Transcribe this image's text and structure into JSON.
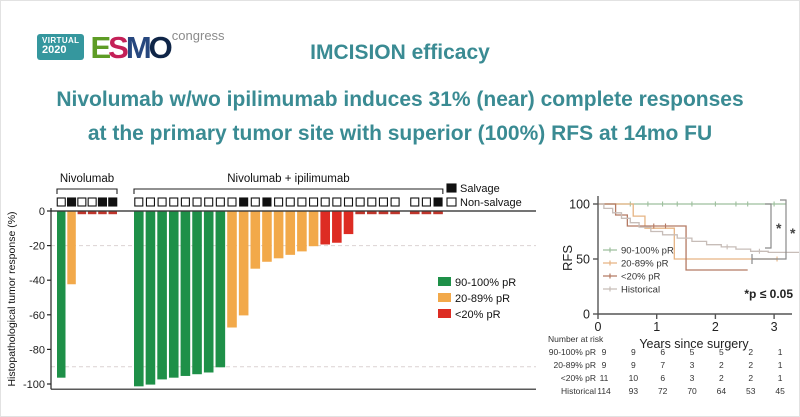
{
  "logo": {
    "virtual_label": "VIRTUAL",
    "year": "2020",
    "virtual_bg": "#35979E",
    "letters": [
      {
        "ch": "E",
        "color": "#5E9C25"
      },
      {
        "ch": "S",
        "color": "#C42057"
      },
      {
        "ch": "M",
        "color": "#27477E"
      },
      {
        "ch": "O",
        "color": "#0F2547"
      }
    ],
    "congress_label": "congress"
  },
  "header": {
    "title": "IMCISION efficacy",
    "subtitle_line1": "Nivolumab w/wo ipilimumab induces 31% (near) complete responses",
    "subtitle_line2": "at the primary tumor site with superior (100%) RFS at 14mo FU",
    "accent_color": "#3A8B93"
  },
  "chart_data": [
    {
      "type": "bar",
      "name": "histopathological-response-waterfall",
      "ylabel": "Histopathological tumor response (%)",
      "yticks": [
        0,
        -20,
        -40,
        -60,
        -80,
        -100
      ],
      "ylim": [
        -103,
        0
      ],
      "threshold_lines": [
        -20,
        -90
      ],
      "bar_colors": {
        "green": "#1E9048",
        "orange": "#F2A94A",
        "red": "#DD2C23",
        "dash": "#C0362C"
      },
      "groups": [
        {
          "label": "Nivolumab",
          "bars": [
            {
              "value": -96,
              "color": "green",
              "salvage": false
            },
            {
              "value": -42,
              "color": "orange",
              "salvage": true
            },
            {
              "value": -1.5,
              "color": "dash",
              "salvage": false
            },
            {
              "value": -1.5,
              "color": "dash",
              "salvage": false
            },
            {
              "value": -1.5,
              "color": "dash",
              "salvage": true
            },
            {
              "value": -1.5,
              "color": "dash",
              "salvage": true
            }
          ]
        },
        {
          "label": "Nivolumab + ipilimumab",
          "bars": [
            {
              "value": -101,
              "color": "green",
              "salvage": false
            },
            {
              "value": -100,
              "color": "green",
              "salvage": false
            },
            {
              "value": -97,
              "color": "green",
              "salvage": false
            },
            {
              "value": -96,
              "color": "green",
              "salvage": false
            },
            {
              "value": -95,
              "color": "green",
              "salvage": false
            },
            {
              "value": -94,
              "color": "green",
              "salvage": false
            },
            {
              "value": -93,
              "color": "green",
              "salvage": false
            },
            {
              "value": -90,
              "color": "green",
              "salvage": false
            },
            {
              "value": -67,
              "color": "orange",
              "salvage": false
            },
            {
              "value": -60,
              "color": "orange",
              "salvage": true
            },
            {
              "value": -33,
              "color": "orange",
              "salvage": false
            },
            {
              "value": -29,
              "color": "orange",
              "salvage": true
            },
            {
              "value": -27,
              "color": "orange",
              "salvage": false
            },
            {
              "value": -25,
              "color": "orange",
              "salvage": false
            },
            {
              "value": -23,
              "color": "orange",
              "salvage": false
            },
            {
              "value": -20,
              "color": "orange",
              "salvage": false
            },
            {
              "value": -19,
              "color": "red",
              "salvage": false
            },
            {
              "value": -18,
              "color": "red",
              "salvage": false
            },
            {
              "value": -13,
              "color": "red",
              "salvage": false
            },
            {
              "value": -1.5,
              "color": "dash",
              "salvage": false
            },
            {
              "value": -1.5,
              "color": "dash",
              "salvage": false
            },
            {
              "value": -1.5,
              "color": "dash",
              "salvage": false
            },
            {
              "value": -1.5,
              "color": "dash",
              "salvage": false
            },
            {
              "value": -1.5,
              "color": "dash",
              "salvage": false,
              "gap_before": true
            },
            {
              "value": -1.5,
              "color": "dash",
              "salvage": false
            },
            {
              "value": -1.5,
              "color": "dash",
              "salvage": true
            }
          ]
        }
      ],
      "legend_salvage": [
        {
          "label": "Salvage",
          "filled": true
        },
        {
          "label": "Non-salvage",
          "filled": false
        }
      ],
      "legend_pr": [
        {
          "label": "90-100% pR",
          "color": "green"
        },
        {
          "label": "20-89% pR",
          "color": "orange"
        },
        {
          "label": "<20% pR",
          "color": "red"
        }
      ]
    },
    {
      "type": "line",
      "name": "rfs-kaplan-meier",
      "ylabel": "RFS",
      "xlabel": "Years since surgery",
      "yticks": [
        0,
        50,
        100
      ],
      "xticks": [
        0,
        1,
        2,
        3
      ],
      "xlim": [
        0,
        3.5
      ],
      "ylim": [
        0,
        100
      ],
      "annotation": "*p ≤ 0.05",
      "significance": {
        "asterisk": "*"
      },
      "series": [
        {
          "name": "90-100% pR",
          "color": "#9DBF9D",
          "points": [
            [
              0,
              100
            ],
            [
              3.2,
              100
            ]
          ],
          "censors": [
            [
              0.55,
              100
            ],
            [
              0.85,
              100
            ],
            [
              1.1,
              100
            ],
            [
              1.35,
              100
            ],
            [
              1.6,
              100
            ],
            [
              2.0,
              100
            ],
            [
              2.35,
              100
            ],
            [
              2.55,
              100
            ],
            [
              3.0,
              100
            ]
          ]
        },
        {
          "name": "20-89% pR",
          "color": "#E6B483",
          "points": [
            [
              0,
              100
            ],
            [
              0.6,
              100
            ],
            [
              0.6,
              89
            ],
            [
              0.8,
              89
            ],
            [
              0.8,
              78
            ],
            [
              1.3,
              78
            ],
            [
              1.3,
              50
            ],
            [
              3.05,
              50
            ]
          ],
          "censors": [
            [
              3.05,
              50
            ]
          ]
        },
        {
          "name": "<20% pR",
          "color": "#B57A63",
          "points": [
            [
              0,
              100
            ],
            [
              0.3,
              100
            ],
            [
              0.3,
              90
            ],
            [
              0.5,
              90
            ],
            [
              0.5,
              80
            ],
            [
              1.5,
              80
            ],
            [
              1.5,
              40
            ],
            [
              2.55,
              40
            ]
          ],
          "censors": [
            [
              0.95,
              80
            ],
            [
              1.15,
              80
            ]
          ]
        },
        {
          "name": "Historical",
          "color": "#C7BDB8",
          "points": [
            [
              0,
              100
            ],
            [
              0.1,
              100
            ],
            [
              0.1,
              96
            ],
            [
              0.25,
              96
            ],
            [
              0.25,
              92
            ],
            [
              0.4,
              92
            ],
            [
              0.4,
              87
            ],
            [
              0.55,
              87
            ],
            [
              0.55,
              83
            ],
            [
              0.7,
              83
            ],
            [
              0.7,
              79
            ],
            [
              0.9,
              79
            ],
            [
              0.9,
              75
            ],
            [
              1.1,
              75
            ],
            [
              1.1,
              72
            ],
            [
              1.35,
              72
            ],
            [
              1.35,
              69
            ],
            [
              1.6,
              69
            ],
            [
              1.6,
              66
            ],
            [
              1.85,
              66
            ],
            [
              1.85,
              63
            ],
            [
              2.1,
              63
            ],
            [
              2.1,
              61
            ],
            [
              2.35,
              61
            ],
            [
              2.35,
              59
            ],
            [
              2.6,
              59
            ],
            [
              2.6,
              57
            ],
            [
              2.9,
              57
            ],
            [
              2.9,
              56
            ],
            [
              3.45,
              56
            ]
          ],
          "censors": [
            [
              2.2,
              61
            ],
            [
              2.75,
              57
            ]
          ]
        }
      ],
      "risk_table": {
        "title": "Number at risk",
        "time_points": [
          0,
          0.5,
          1,
          1.5,
          2,
          2.5,
          3
        ],
        "rows": [
          {
            "label": "90-100% pR",
            "values": [
              9,
              9,
              6,
              5,
              5,
              2,
              1
            ]
          },
          {
            "label": "20-89% pR",
            "values": [
              9,
              9,
              7,
              3,
              2,
              2,
              1
            ]
          },
          {
            "label": "<20% pR",
            "values": [
              11,
              10,
              6,
              3,
              2,
              2,
              1
            ]
          },
          {
            "label": "Historical",
            "values": [
              114,
              93,
              72,
              70,
              64,
              53,
              45
            ]
          }
        ]
      }
    }
  ]
}
